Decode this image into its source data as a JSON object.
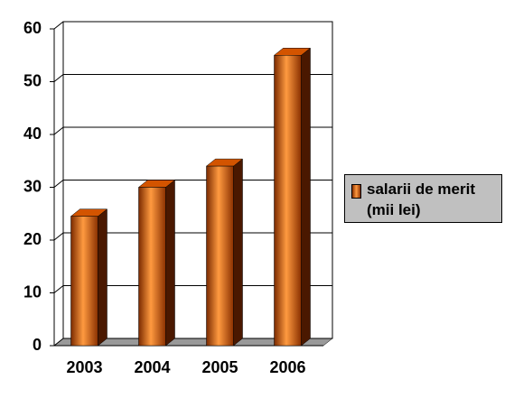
{
  "chart_data": {
    "type": "bar3d",
    "categories": [
      "2003",
      "2004",
      "2005",
      "2006"
    ],
    "series": [
      {
        "name": "salarii de merit (mii lei)",
        "color": "#d35400",
        "values": [
          24.5,
          30,
          34,
          55
        ]
      }
    ],
    "ylim": [
      0,
      60
    ],
    "yticks": [
      0,
      10,
      20,
      30,
      40,
      50,
      60
    ],
    "grid": true,
    "legend": "right"
  }
}
